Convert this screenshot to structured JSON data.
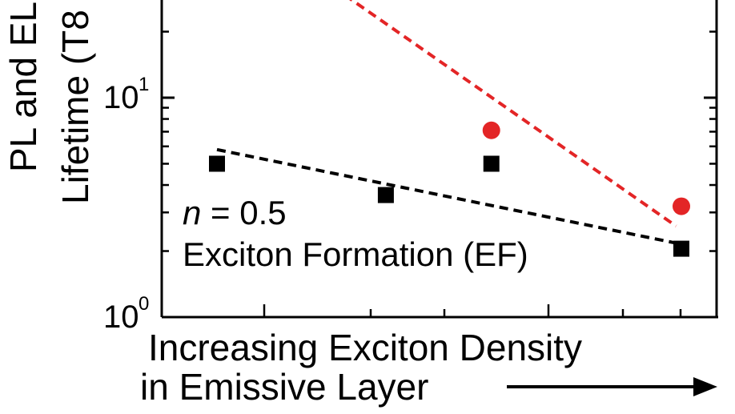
{
  "chart_data": {
    "type": "scatter",
    "title": "",
    "ylabel_lines": [
      "PL and EL",
      "Lifetime (T8"
    ],
    "xlabel_lines": [
      "Increasing Exciton Density",
      "in Emissive Layer"
    ],
    "y_scale": "log",
    "ylim": [
      1,
      20
    ],
    "xlim": [
      0,
      10
    ],
    "y_tick_labels": [
      {
        "value": 10,
        "base": "10",
        "exp": "1"
      },
      {
        "value": 1,
        "base": "10",
        "exp": "0"
      }
    ],
    "annotation": {
      "n_symbol": "n",
      "n_value": " = 0.5",
      "label": "Exciton Formation (EF)"
    },
    "series": [
      {
        "marker": "circle",
        "color": "#e32526",
        "points": [
          {
            "x": 6.2,
            "y": 7.1
          },
          {
            "x": 9.8,
            "y": 3.2
          }
        ],
        "fit": {
          "x": [
            3.2,
            9.7
          ],
          "y": [
            32,
            2.6
          ],
          "style": "dashed"
        }
      },
      {
        "marker": "square",
        "color": "#000000",
        "points": [
          {
            "x": 1.0,
            "y": 5.0
          },
          {
            "x": 4.2,
            "y": 3.6
          },
          {
            "x": 6.2,
            "y": 5.0
          },
          {
            "x": 9.8,
            "y": 2.05
          }
        ],
        "fit": {
          "x": [
            1.0,
            9.8
          ],
          "y": [
            5.8,
            2.15
          ],
          "style": "dashed"
        }
      }
    ],
    "arrow": "right",
    "grid": false
  }
}
